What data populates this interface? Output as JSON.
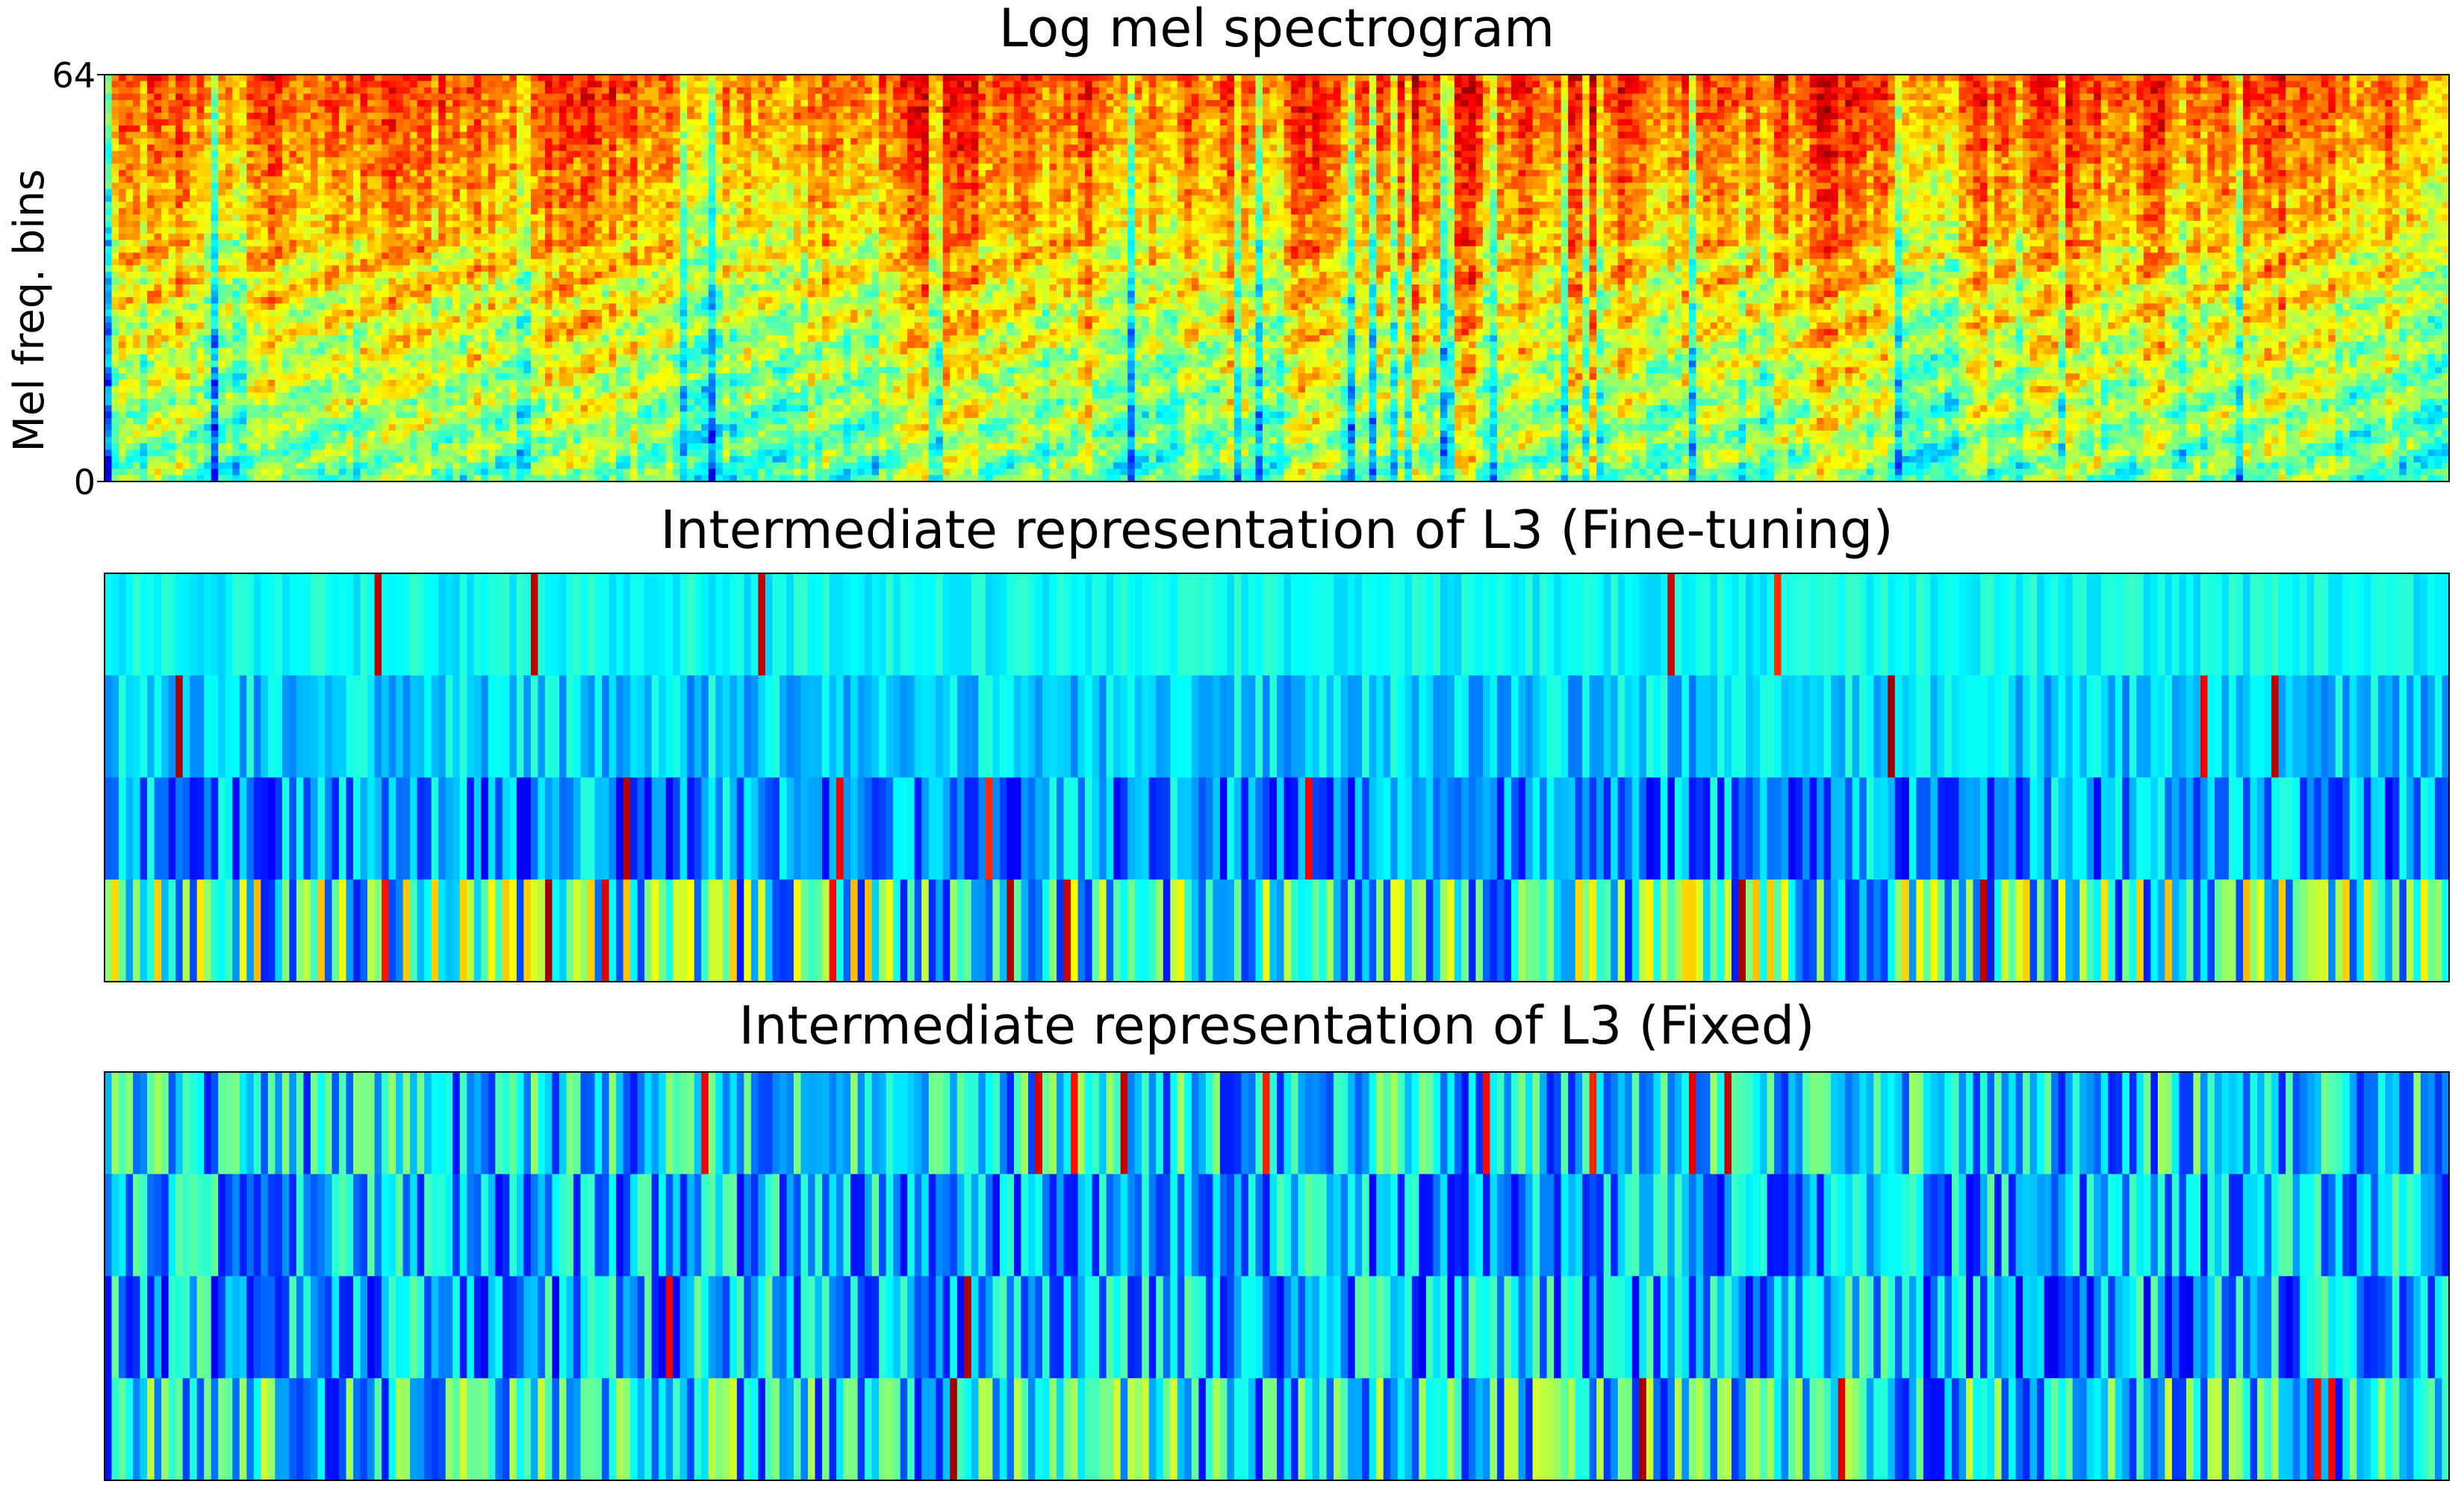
{
  "chart_data": [
    {
      "type": "heatmap",
      "title": "Log mel spectrogram",
      "ylabel": "Mel freq. bins",
      "yticks": [
        "0",
        "64"
      ],
      "ylim": [
        0,
        64
      ],
      "n_rows": 64,
      "n_cols": 330,
      "colormap": "jet",
      "colors": {
        "low": "#00007f",
        "mid": "#7fff7f",
        "high": "#7f0000"
      }
    },
    {
      "type": "heatmap",
      "title": "Intermediate representation of L3 (Fine-tuning)",
      "n_rows": 4,
      "n_cols": 330,
      "colormap": "jet"
    },
    {
      "type": "heatmap",
      "title": "Intermediate representation of L3 (Fixed)",
      "n_rows": 4,
      "n_cols": 330,
      "colormap": "jet"
    }
  ]
}
